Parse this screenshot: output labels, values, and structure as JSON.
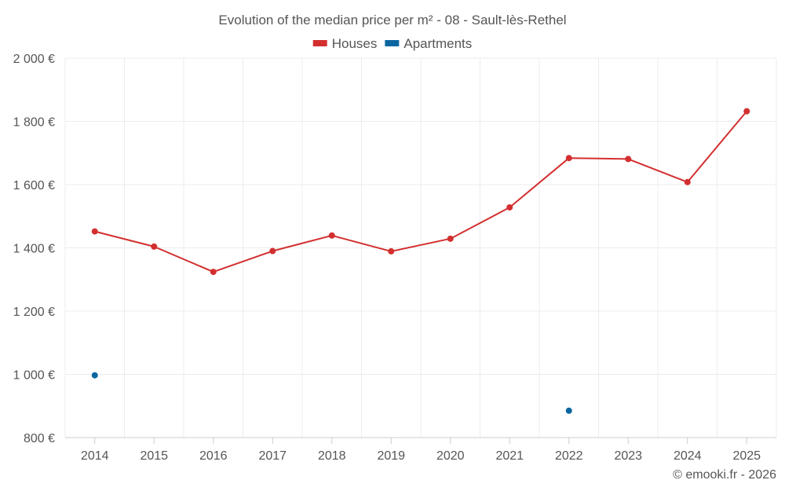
{
  "chart_data": {
    "type": "line",
    "title": "Evolution of the median price per m² - 08 - Sault-lès-Rethel",
    "categories": [
      "2014",
      "2015",
      "2016",
      "2017",
      "2018",
      "2019",
      "2020",
      "2021",
      "2022",
      "2023",
      "2024",
      "2025"
    ],
    "series": [
      {
        "name": "Houses",
        "color": "#d32f2f",
        "values": [
          1452,
          1404,
          1324,
          1390,
          1439,
          1389,
          1429,
          1528,
          1684,
          1681,
          1608,
          1832
        ]
      },
      {
        "name": "Apartments",
        "color": "#0b66a0",
        "values": [
          997,
          null,
          null,
          null,
          null,
          null,
          null,
          null,
          885,
          null,
          null,
          null
        ]
      }
    ],
    "y_ticks": [
      800,
      1000,
      1200,
      1400,
      1600,
      1800,
      2000
    ],
    "y_tick_labels": [
      "800 €",
      "1 000 €",
      "1 200 €",
      "1 400 €",
      "1 600 €",
      "1 800 €",
      "2 000 €"
    ],
    "ylim": [
      800,
      2000
    ],
    "xlabel": "",
    "ylabel": "",
    "grid": true,
    "legend_position": "top-center"
  },
  "credit": "© emooki.fr - 2026"
}
